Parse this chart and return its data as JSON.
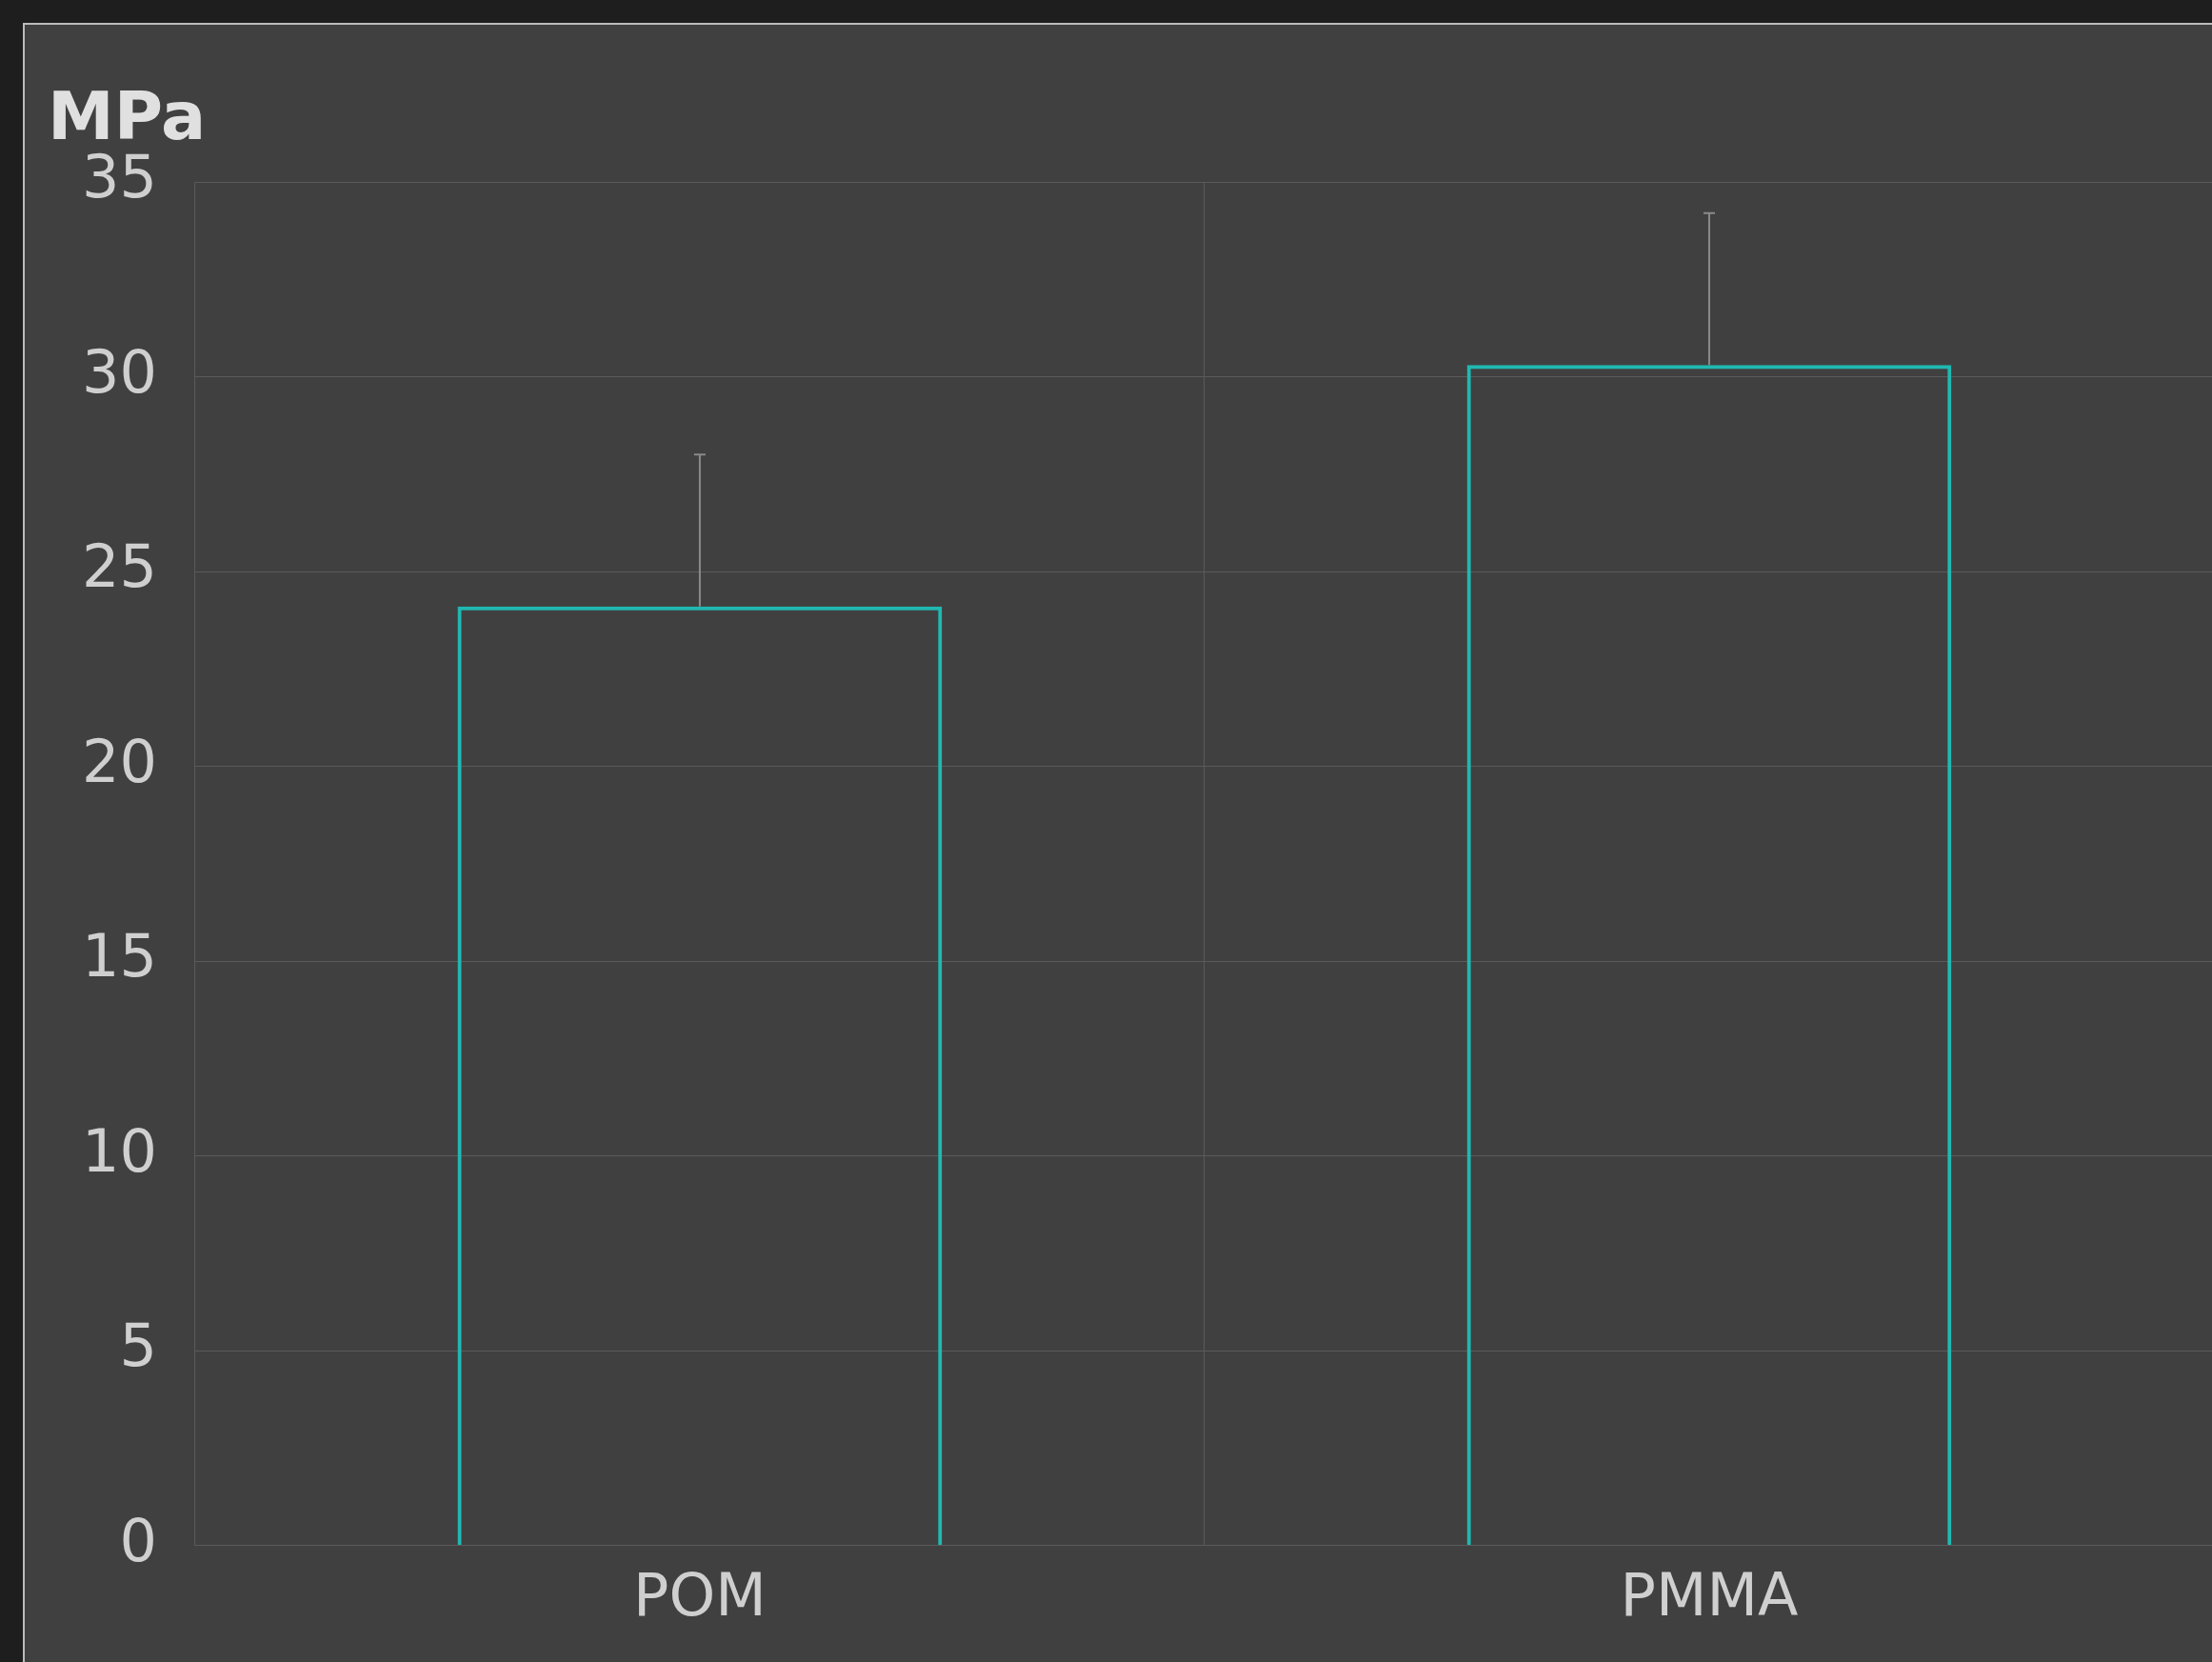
{
  "chart_data": {
    "type": "bar",
    "ylabel": "MPa",
    "categories": [
      "POM",
      "PMMA"
    ],
    "values": [
      24.1,
      30.3
    ],
    "color": "#20b8b2",
    "errors": [
      [
        24.1,
        28.0
      ],
      [
        30.3,
        34.2
      ]
    ],
    "ylim": [
      0,
      35
    ],
    "yticks": [
      0,
      5,
      10,
      15,
      20,
      25,
      30,
      35
    ],
    "grid": true
  }
}
